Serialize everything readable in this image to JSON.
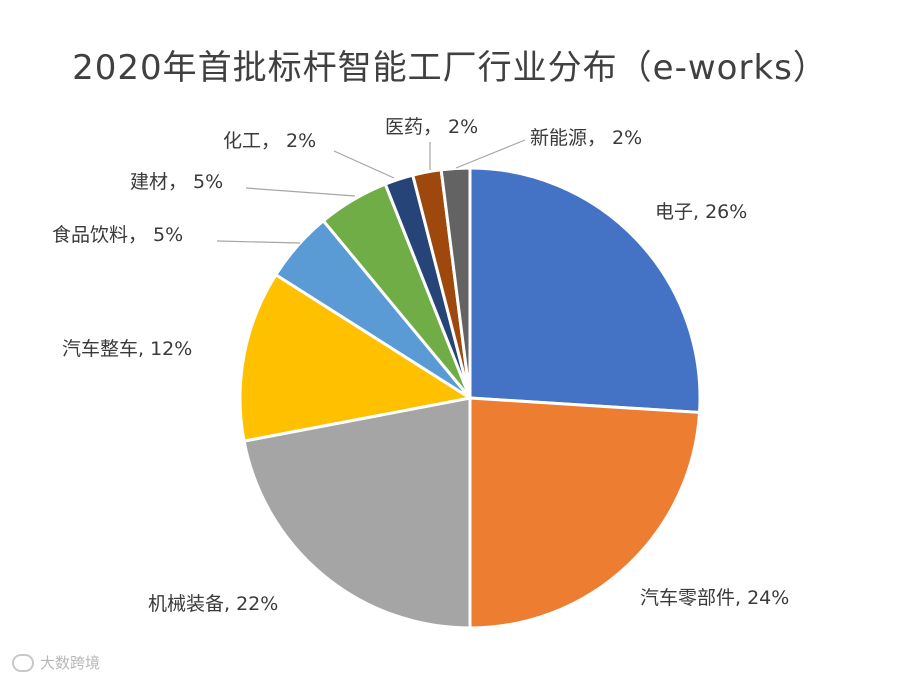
{
  "chart_data": {
    "type": "pie",
    "title": "2020年首批标杆智能工厂行业分布（e-works）",
    "slices": [
      {
        "name": "电子",
        "value": 26,
        "label": "电子, 26%",
        "color": "#4472C4"
      },
      {
        "name": "汽车零部件",
        "value": 24,
        "label": "汽车零部件, 24%",
        "color": "#ED7D31"
      },
      {
        "name": "机械装备",
        "value": 22,
        "label": "机械装备, 22%",
        "color": "#A5A5A5"
      },
      {
        "name": "汽车整车",
        "value": 12,
        "label": "汽车整车, 12%",
        "color": "#FFC000"
      },
      {
        "name": "食品饮料",
        "value": 5,
        "label": "食品饮料， 5%",
        "color": "#5B9BD5"
      },
      {
        "name": "建材",
        "value": 5,
        "label": "建材， 5%",
        "color": "#70AD47"
      },
      {
        "name": "化工",
        "value": 2,
        "label": "化工， 2%",
        "color": "#264478"
      },
      {
        "name": "医药",
        "value": 2,
        "label": "医药， 2%",
        "color": "#9E480E"
      },
      {
        "name": "新能源",
        "value": 2,
        "label": "新能源， 2%",
        "color": "#636363"
      }
    ],
    "legend": "none"
  },
  "watermark": {
    "text": "大数跨境"
  }
}
